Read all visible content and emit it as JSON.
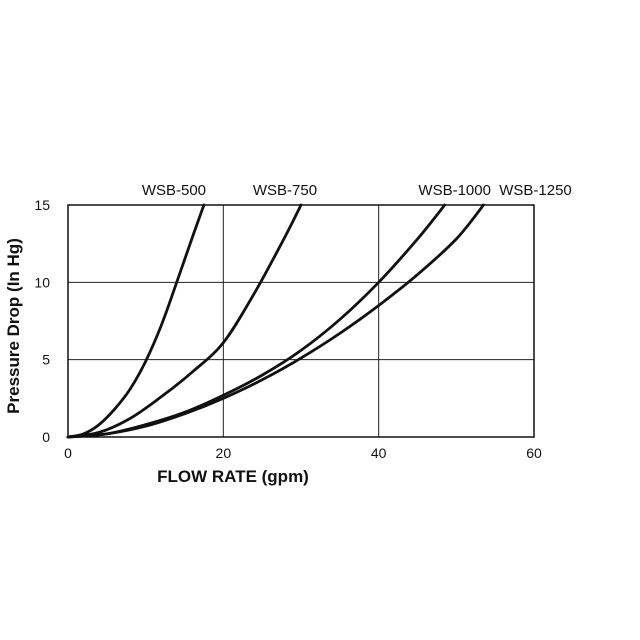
{
  "chart_data": {
    "type": "line",
    "title": "",
    "xlabel": "FLOW RATE (gpm)",
    "ylabel": "Pressure Drop (In Hg)",
    "xlim": [
      0,
      60
    ],
    "ylim": [
      0,
      15
    ],
    "x_ticks": [
      0,
      20,
      40,
      60
    ],
    "y_ticks": [
      0,
      5,
      10,
      15
    ],
    "grid": true,
    "legend": "labels-above-curves",
    "series": [
      {
        "name": "WSB-500",
        "x": [
          0,
          2,
          4,
          6,
          8,
          10,
          12,
          14,
          16,
          17.5
        ],
        "y": [
          0,
          0.2,
          0.8,
          1.8,
          3.1,
          4.9,
          7.2,
          10.0,
          12.9,
          15.0
        ]
      },
      {
        "name": "WSB-750",
        "x": [
          0,
          4,
          8,
          12,
          16,
          20,
          24,
          28,
          30
        ],
        "y": [
          0,
          0.3,
          1.2,
          2.6,
          4.2,
          6.1,
          9.3,
          13.0,
          15.0
        ]
      },
      {
        "name": "WSB-1000",
        "x": [
          0,
          5,
          10,
          15,
          20,
          25,
          30,
          35,
          40,
          45,
          48.5
        ],
        "y": [
          0,
          0.2,
          0.8,
          1.6,
          2.7,
          4.0,
          5.6,
          7.6,
          10.0,
          12.8,
          15.0
        ]
      },
      {
        "name": "WSB-1250",
        "x": [
          0,
          5,
          10,
          15,
          20,
          25,
          30,
          35,
          40,
          45,
          50,
          53.5
        ],
        "y": [
          0,
          0.2,
          0.7,
          1.5,
          2.5,
          3.7,
          5.1,
          6.7,
          8.5,
          10.5,
          12.8,
          15.0
        ]
      }
    ]
  }
}
